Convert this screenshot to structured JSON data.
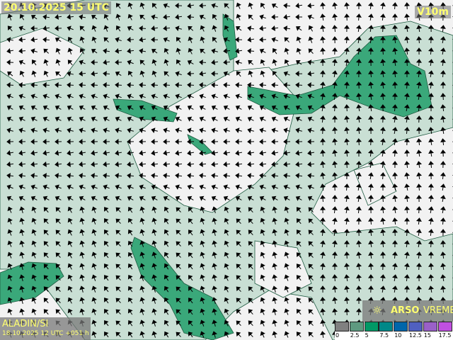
{
  "header": {
    "title": "20.10.2025 15 UTC",
    "parameter": "V10m"
  },
  "model": {
    "name": "ALADIN/SI",
    "run": "18.10.2025 12 UTC +051 h"
  },
  "logo": {
    "icon": "sun-icon",
    "brand": "ARSO",
    "product": "VREME"
  },
  "legend": {
    "unit_steps": [
      "0",
      "2.5",
      "5",
      "7.5",
      "10",
      "12.5",
      "15",
      "17.5"
    ],
    "colors": [
      "#808080",
      "#5e9a80",
      "#009966",
      "#008888",
      "#0066aa",
      "#5060c0",
      "#9a60c8",
      "#c050e0"
    ]
  },
  "map_colors": {
    "background": "#f2f2f2",
    "light_wind": "#c9dfd4",
    "moderate_wind": "#3aa87a",
    "contour": "#1e5a40",
    "arrow": "#000000"
  }
}
